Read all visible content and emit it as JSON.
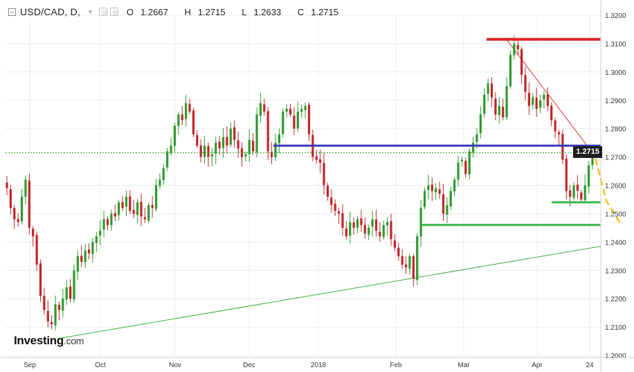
{
  "header": {
    "symbol": "USD/CAD, D,",
    "open_label": "O",
    "open": "1.2667",
    "high_label": "H",
    "high": "1.2715",
    "low_label": "L",
    "low": "1.2633",
    "close_label": "C",
    "close": "1.2715",
    "icons": [
      "collapse-icon",
      "chevron-down-icon",
      "settings-icon",
      "gear-icon"
    ]
  },
  "logo": {
    "brand": "Investing",
    "suffix": ".com"
  },
  "last_price_tag": "1.2715",
  "colors": {
    "up": "#2e9a2e",
    "down": "#c0262a",
    "resistance": "#e52325",
    "blue_line": "#3a3ab8",
    "support": "#3cb34a",
    "trendline": "#3cab3c",
    "down_trendline": "#d93030",
    "forecast": "#f5c211",
    "last_price_line": "#22a022",
    "grid": "#ebebeb"
  },
  "chart_data": {
    "type": "candlestick",
    "symbol": "USD/CAD",
    "timeframe": "D",
    "y_ticks": [
      "1.3200",
      "1.3100",
      "1.3000",
      "1.2900",
      "1.2800",
      "1.2700",
      "1.2600",
      "1.2500",
      "1.2400",
      "1.2300",
      "1.2200",
      "1.2100",
      "1.2000"
    ],
    "ylim": [
      1.2,
      1.32
    ],
    "x_ticks": [
      "Sep",
      "Oct",
      "Nov",
      "Dec",
      "2018",
      "Feb",
      "Mar",
      "Apr",
      "24"
    ],
    "grid": true,
    "last_price": 1.2715,
    "close_series": [
      1.259,
      1.252,
      1.248,
      1.247,
      1.256,
      1.262,
      1.245,
      1.242,
      1.232,
      1.221,
      1.216,
      1.212,
      1.211,
      1.218,
      1.216,
      1.22,
      1.224,
      1.22,
      1.23,
      1.235,
      1.233,
      1.237,
      1.236,
      1.24,
      1.242,
      1.244,
      1.248,
      1.246,
      1.25,
      1.249,
      1.254,
      1.252,
      1.256,
      1.251,
      1.25,
      1.254,
      1.249,
      1.248,
      1.253,
      1.252,
      1.26,
      1.262,
      1.266,
      1.272,
      1.274,
      1.281,
      1.285,
      1.283,
      1.289,
      1.286,
      1.278,
      1.274,
      1.27,
      1.274,
      1.27,
      1.271,
      1.275,
      1.273,
      1.277,
      1.274,
      1.28,
      1.276,
      1.273,
      1.27,
      1.271,
      1.276,
      1.272,
      1.285,
      1.289,
      1.286,
      1.272,
      1.27,
      1.275,
      1.278,
      1.286,
      1.287,
      1.285,
      1.28,
      1.286,
      1.287,
      1.288,
      1.278,
      1.27,
      1.269,
      1.268,
      1.26,
      1.256,
      1.253,
      1.251,
      1.25,
      1.245,
      1.242,
      1.247,
      1.245,
      1.248,
      1.246,
      1.243,
      1.245,
      1.248,
      1.244,
      1.242,
      1.246,
      1.247,
      1.241,
      1.238,
      1.235,
      1.232,
      1.231,
      1.235,
      1.227,
      1.242,
      1.252,
      1.258,
      1.26,
      1.258,
      1.259,
      1.257,
      1.25,
      1.253,
      1.258,
      1.262,
      1.268,
      1.269,
      1.264,
      1.272,
      1.275,
      1.278,
      1.285,
      1.292,
      1.296,
      1.291,
      1.285,
      1.288,
      1.284,
      1.295,
      1.306,
      1.31,
      1.308,
      1.299,
      1.293,
      1.288,
      1.291,
      1.287,
      1.29,
      1.292,
      1.288,
      1.283,
      1.279,
      1.278,
      1.269,
      1.258,
      1.256,
      1.26,
      1.258,
      1.255,
      1.26,
      1.267,
      1.2715
    ],
    "annotations": {
      "resistance_level": 1.3115,
      "blue_level": 1.274,
      "support_upper": 1.254,
      "support_lower": 1.246,
      "rising_trendline": {
        "from_close_index": 14,
        "from": 1.206,
        "to": 1.2385
      },
      "falling_trendline": {
        "from": 1.312,
        "to": 1.2715
      },
      "forecast_path": [
        1.2715,
        1.2735,
        1.2545,
        1.246
      ]
    }
  }
}
